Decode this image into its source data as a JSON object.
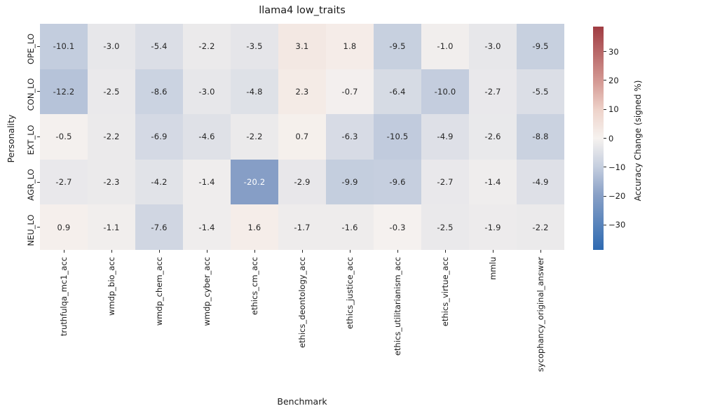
{
  "title": "llama4 low_traits",
  "chart_data": {
    "type": "heatmap",
    "title": "llama4 low_traits",
    "xlabel": "Benchmark",
    "ylabel": "Personality",
    "rows": [
      "OPE_LO",
      "CON_LO",
      "EXT_LO",
      "AGR_LO",
      "NEU_LO"
    ],
    "columns": [
      "truthfulqa_mc1_acc",
      "wmdp_bio_acc",
      "wmdp_chem_acc",
      "wmdp_cyber_acc",
      "ethics_cm_acc",
      "ethics_deontology_acc",
      "ethics_justice_acc",
      "ethics_utilitarianism_acc",
      "ethics_virtue_acc",
      "mmlu",
      "sycophancy_original_answer"
    ],
    "values": [
      [
        -10.1,
        -3.0,
        -5.4,
        -2.2,
        -3.5,
        3.1,
        1.8,
        -9.5,
        -1.0,
        -3.0,
        -9.5
      ],
      [
        -12.2,
        -2.5,
        -8.6,
        -3.0,
        -4.8,
        2.3,
        -0.7,
        -6.4,
        -10.0,
        -2.7,
        -5.5
      ],
      [
        -0.5,
        -2.2,
        -6.9,
        -4.6,
        -2.2,
        0.7,
        -6.3,
        -10.5,
        -4.9,
        -2.6,
        -8.8
      ],
      [
        -2.7,
        -2.3,
        -4.2,
        -1.4,
        -20.2,
        -2.9,
        -9.9,
        -9.6,
        -2.7,
        -1.4,
        -4.9
      ],
      [
        0.9,
        -1.1,
        -7.6,
        -1.4,
        1.6,
        -1.7,
        -1.6,
        -0.3,
        -2.5,
        -1.9,
        -2.2
      ]
    ],
    "colorbar": {
      "label": "Accuracy Change (signed %)",
      "ticks": [
        30,
        20,
        10,
        0,
        -10,
        -20,
        -30
      ],
      "tick_labels": [
        "30",
        "20",
        "10",
        "0",
        "−10",
        "−20",
        "−30"
      ],
      "vmin": -38.6,
      "vmax": 38.6,
      "colormap_stops": [
        {
          "t": 0.0,
          "color": "#2e6ab1"
        },
        {
          "t": 0.25,
          "color": "#8aa1c7"
        },
        {
          "t": 0.375,
          "color": "#c6cfdf"
        },
        {
          "t": 0.5,
          "color": "#f6f2ef"
        },
        {
          "t": 0.625,
          "color": "#eed3ca"
        },
        {
          "t": 0.75,
          "color": "#d59b95"
        },
        {
          "t": 1.0,
          "color": "#a03c42"
        }
      ]
    },
    "annotation_text_dark": "#262626",
    "annotation_text_light": "#ffffff",
    "grid": false,
    "legend_position": "right-colorbar"
  }
}
